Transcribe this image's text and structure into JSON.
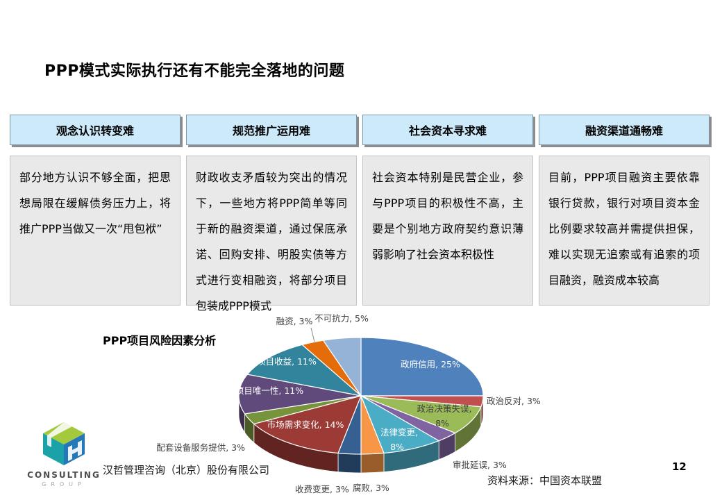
{
  "slide": {
    "title": "PPP模式实际执行还有不能完全落地的问题",
    "company": "汉哲管理咨询（北京）股份有限公司",
    "source": "资料来源：中国资本联盟",
    "page_number": "12"
  },
  "columns": [
    {
      "header": "观念认识转变难",
      "body": "部分地方认识不够全面，把思想局限在缓解债务压力上，将推广PPP当做又一次“甩包袱”"
    },
    {
      "header": "规范推广运用难",
      "body": "财政收支矛盾较为突出的情况下，一些地方将PPP简单等同于新的融资渠道，通过保底承诺、回购安排、明股实债等方式进行变相融资，将部分项目包装成PPP模式"
    },
    {
      "header": "社会资本寻求难",
      "body": "社会资本特别是民营企业，参与PPP项目的积极性不高，主要是个别地方政府契约意识薄弱影响了社会资本积极性"
    },
    {
      "header": "融资渠道通畅难",
      "body": "目前，PPP项目融资主要依靠银行贷款，银行对项目资本金比例要求较高并需提供担保，难以实现无追索或有追索的项目融资，融资成本较高"
    }
  ],
  "logo": {
    "name": "CONSULTING",
    "sub": "GROUP"
  },
  "chart_data": {
    "type": "pie",
    "style": "3d",
    "title": "PPP项目风险因素分析",
    "start_angle": "12 o'clock, clockwise",
    "slices": [
      {
        "label": "政府信用",
        "value": 25,
        "color": "#4F81BD"
      },
      {
        "label": "政治反对",
        "value": 3,
        "color": "#C0504D"
      },
      {
        "label": "政治决策失误",
        "value": 8,
        "color": "#9BBB59"
      },
      {
        "label": "审批延误",
        "value": 3,
        "color": "#8064A2"
      },
      {
        "label": "法律变更",
        "value": 8,
        "color": "#4BACC6"
      },
      {
        "label": "腐败",
        "value": 3,
        "color": "#F79646"
      },
      {
        "label": "收费变更",
        "value": 3,
        "color": "#366092"
      },
      {
        "label": "市场需求变化",
        "value": 14,
        "color": "#9C3A36"
      },
      {
        "label": "配套设备服务提供",
        "value": 3,
        "color": "#77933C"
      },
      {
        "label": "项目唯一性",
        "value": 11,
        "color": "#604A7B"
      },
      {
        "label": "项目收益",
        "value": 11,
        "color": "#31849B"
      },
      {
        "label": "融资",
        "value": 3,
        "color": "#E46C0A"
      },
      {
        "label": "不可抗力",
        "value": 5,
        "color": "#95B3D7"
      }
    ]
  }
}
